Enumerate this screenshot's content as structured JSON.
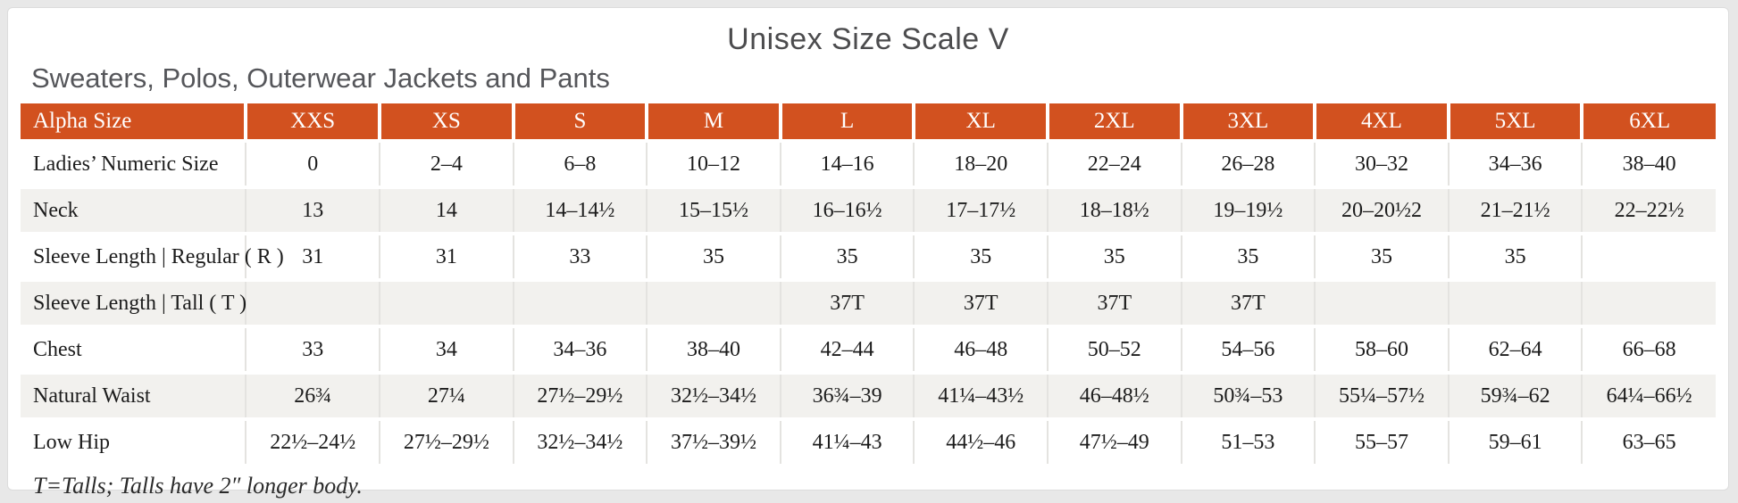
{
  "title": "Unisex Size Scale V",
  "subtitle": "Sweaters, Polos, Outerwear Jackets and Pants",
  "colors": {
    "header_accent": "#d2511f",
    "row_stripe": "#f2f1ee",
    "title_text": "#4c4c4e"
  },
  "table": {
    "header_label": "Alpha Size",
    "size_columns": [
      "XXS",
      "XS",
      "S",
      "M",
      "L",
      "XL",
      "2XL",
      "3XL",
      "4XL",
      "5XL",
      "6XL"
    ],
    "rows": [
      {
        "label": "Ladies’ Numeric Size",
        "values": [
          "0",
          "2–4",
          "6–8",
          "10–12",
          "14–16",
          "18–20",
          "22–24",
          "26–28",
          "30–32",
          "34–36",
          "38–40"
        ]
      },
      {
        "label": "Neck",
        "values": [
          "13",
          "14",
          "14–14½",
          "15–15½",
          "16–16½",
          "17–17½",
          "18–18½",
          "19–19½",
          "20–20½2",
          "21–21½",
          "22–22½"
        ]
      },
      {
        "label": "Sleeve Length | Regular ( R )",
        "values": [
          "31",
          "31",
          "33",
          "35",
          "35",
          "35",
          "35",
          "35",
          "35",
          "35",
          ""
        ]
      },
      {
        "label": "Sleeve Length | Tall ( T )",
        "values": [
          "",
          "",
          "",
          "",
          "37T",
          "37T",
          "37T",
          "37T",
          "",
          "",
          ""
        ]
      },
      {
        "label": "Chest",
        "values": [
          "33",
          "34",
          "34–36",
          "38–40",
          "42–44",
          "46–48",
          "50–52",
          "54–56",
          "58–60",
          "62–64",
          "66–68"
        ]
      },
      {
        "label": "Natural Waist",
        "values": [
          "26¾",
          "27¼",
          "27½–29½",
          "32½–34½",
          "36¾–39",
          "41¼–43½",
          "46–48½",
          "50¾–53",
          "55¼–57½",
          "59¾–62",
          "64¼–66½"
        ]
      },
      {
        "label": "Low Hip",
        "values": [
          "22½–24½",
          "27½–29½",
          "32½–34½",
          "37½–39½",
          "41¼–43",
          "44½–46",
          "47½–49",
          "51–53",
          "55–57",
          "59–61",
          "63–65"
        ]
      }
    ]
  },
  "footnote": "T=Talls; Talls have 2″ longer body."
}
